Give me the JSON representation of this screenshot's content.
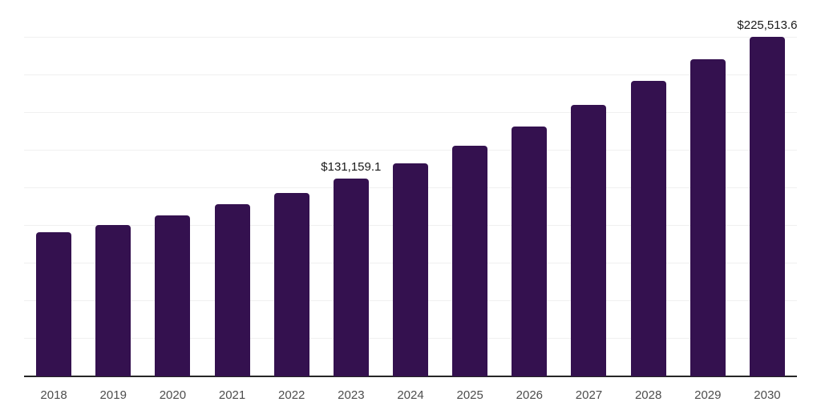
{
  "chart_data": {
    "type": "bar",
    "title": "",
    "xlabel": "",
    "ylabel": "",
    "categories": [
      "2018",
      "2019",
      "2020",
      "2021",
      "2022",
      "2023",
      "2024",
      "2025",
      "2026",
      "2027",
      "2028",
      "2029",
      "2030"
    ],
    "values": [
      95500,
      100800,
      106700,
      114400,
      121900,
      131159.1,
      141600,
      153100,
      165900,
      180300,
      196300,
      210700,
      225513.6
    ],
    "data_labels": {
      "2023": "$131,159.1",
      "2030": "$225,513.6"
    },
    "ylim": [
      0,
      250000
    ],
    "gridline_step": 25000,
    "grid": true,
    "legend": "none"
  },
  "colors": {
    "bar": "#34114F",
    "axis": "#262626",
    "gridline": "#F0F0F0",
    "tick_label": "#4D4D4D",
    "data_label": "#1A1A1A",
    "background": "#FFFFFF"
  }
}
